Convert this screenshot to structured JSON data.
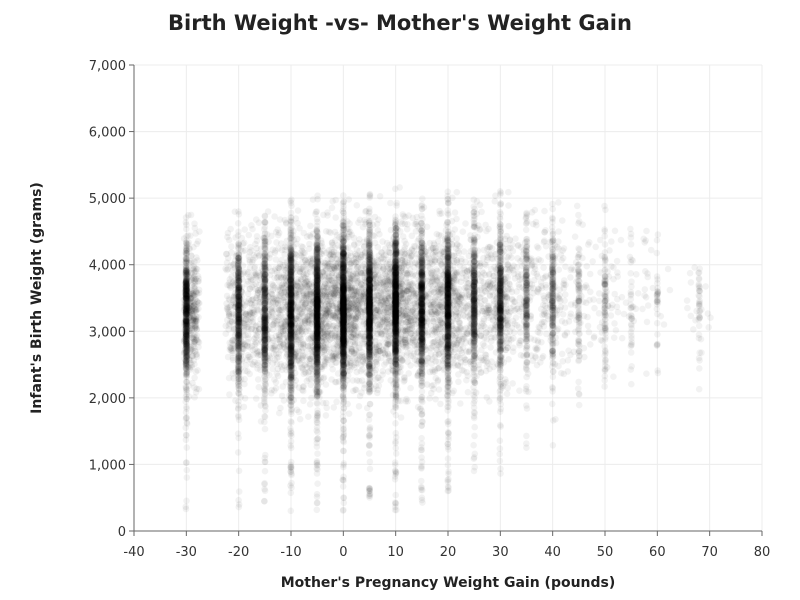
{
  "chart_data": {
    "type": "scatter",
    "title": "Birth Weight -vs- Mother's Weight Gain",
    "xlabel": "Mother's Pregnancy Weight Gain (pounds)",
    "ylabel": "Infant's Birth Weight (grams)",
    "xlim": [
      -40,
      80
    ],
    "ylim": [
      0,
      7000
    ],
    "x_ticks": [
      -40,
      -30,
      -20,
      -10,
      0,
      10,
      20,
      30,
      40,
      50,
      60,
      70,
      80
    ],
    "x_tick_labels": [
      "-40",
      "-30",
      "-20",
      "-10",
      "0",
      "10",
      "20",
      "30",
      "40",
      "50",
      "60",
      "70",
      "80"
    ],
    "y_ticks": [
      0,
      1000,
      2000,
      3000,
      4000,
      5000,
      6000,
      7000
    ],
    "y_tick_labels": [
      "0",
      "1,000",
      "2,000",
      "3,000",
      "4,000",
      "5,000",
      "6,000",
      "7,000"
    ],
    "grid": true,
    "marker_color": "#000000",
    "marker_opacity": 0.05,
    "series": [
      {
        "x_columns": [
          {
            "x": -30,
            "weight": 0.55,
            "y_center": 3300,
            "y_spread": 500,
            "y_min": 300,
            "y_max": 4800
          },
          {
            "x": -20,
            "weight": 0.45,
            "y_center": 3300,
            "y_spread": 550,
            "y_min": 250,
            "y_max": 4800
          },
          {
            "x": -15,
            "weight": 0.45,
            "y_center": 3300,
            "y_spread": 550,
            "y_min": 300,
            "y_max": 4900
          },
          {
            "x": -10,
            "weight": 0.75,
            "y_center": 3300,
            "y_spread": 600,
            "y_min": 300,
            "y_max": 5000
          },
          {
            "x": -5,
            "weight": 0.85,
            "y_center": 3300,
            "y_spread": 550,
            "y_min": 300,
            "y_max": 5100
          },
          {
            "x": 0,
            "weight": 1.0,
            "y_center": 3350,
            "y_spread": 550,
            "y_min": 300,
            "y_max": 5100
          },
          {
            "x": 5,
            "weight": 0.8,
            "y_center": 3350,
            "y_spread": 550,
            "y_min": 300,
            "y_max": 5200
          },
          {
            "x": 10,
            "weight": 0.9,
            "y_center": 3400,
            "y_spread": 550,
            "y_min": 300,
            "y_max": 5300
          },
          {
            "x": 15,
            "weight": 0.6,
            "y_center": 3400,
            "y_spread": 550,
            "y_min": 400,
            "y_max": 5200
          },
          {
            "x": 20,
            "weight": 0.7,
            "y_center": 3400,
            "y_spread": 550,
            "y_min": 600,
            "y_max": 5200
          },
          {
            "x": 25,
            "weight": 0.4,
            "y_center": 3450,
            "y_spread": 550,
            "y_min": 800,
            "y_max": 5000
          },
          {
            "x": 30,
            "weight": 0.45,
            "y_center": 3450,
            "y_spread": 550,
            "y_min": 800,
            "y_max": 5300
          },
          {
            "x": 35,
            "weight": 0.2,
            "y_center": 3500,
            "y_spread": 550,
            "y_min": 1200,
            "y_max": 5000
          },
          {
            "x": 40,
            "weight": 0.2,
            "y_center": 3500,
            "y_spread": 550,
            "y_min": 1200,
            "y_max": 5000
          },
          {
            "x": 45,
            "weight": 0.08,
            "y_center": 3500,
            "y_spread": 500,
            "y_min": 1800,
            "y_max": 4900
          },
          {
            "x": 50,
            "weight": 0.08,
            "y_center": 3500,
            "y_spread": 500,
            "y_min": 2000,
            "y_max": 5000
          },
          {
            "x": 55,
            "weight": 0.03,
            "y_center": 3500,
            "y_spread": 500,
            "y_min": 2200,
            "y_max": 4800
          },
          {
            "x": 60,
            "weight": 0.03,
            "y_center": 3500,
            "y_spread": 500,
            "y_min": 2200,
            "y_max": 4800
          },
          {
            "x": 68,
            "weight": 0.03,
            "y_center": 3400,
            "y_spread": 500,
            "y_min": 2000,
            "y_max": 4000
          }
        ]
      }
    ]
  }
}
